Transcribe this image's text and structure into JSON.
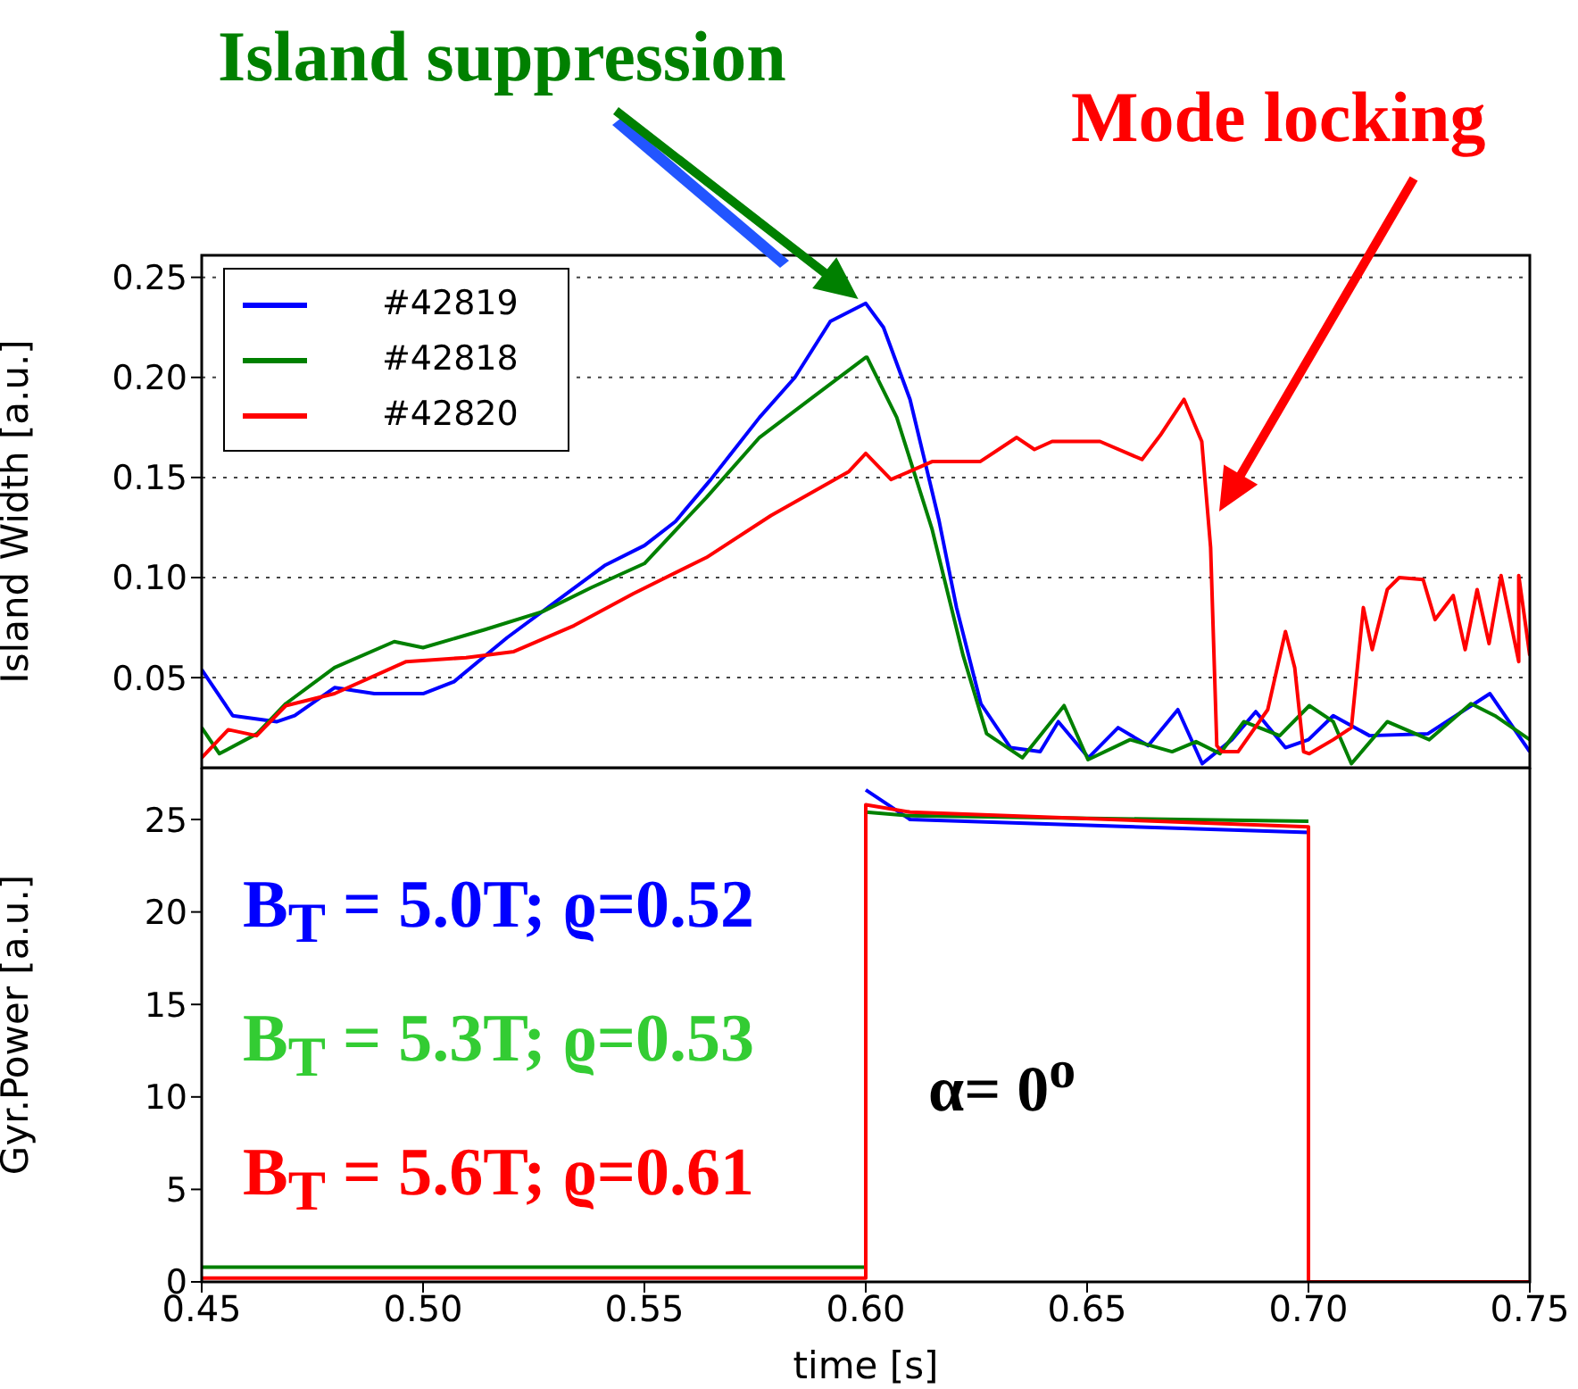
{
  "chart_data": [
    {
      "type": "line",
      "ylabel": "Island Width [a.u.]",
      "xlim": [
        0.45,
        0.75
      ],
      "xticks": [
        0.45,
        0.5,
        0.55,
        0.6,
        0.65,
        0.7,
        0.75
      ],
      "ylim": [
        0.005,
        0.261
      ],
      "yticks": [
        0.05,
        {
          "value": 0.1,
          "label": "0.10"
        },
        0.15,
        {
          "value": 0.2,
          "label": "0.20"
        },
        0.25
      ],
      "grid": true,
      "legend": "top left",
      "tick_labels": "y",
      "annotations": [
        "Island suppression",
        "Mode locking"
      ],
      "series": [
        {
          "name": "#42819",
          "color": "#0000ff",
          "x": [
            0.45,
            0.457,
            0.467,
            0.471,
            0.48,
            0.489,
            0.5,
            0.507,
            0.519,
            0.53,
            0.541,
            0.55,
            0.557,
            0.565,
            0.576,
            0.584,
            0.592,
            0.6,
            0.604,
            0.61,
            0.6165,
            0.6205,
            0.626,
            0.6327,
            0.6394,
            0.6435,
            0.6503,
            0.657,
            0.6638,
            0.6705,
            0.676,
            0.6827,
            0.6881,
            0.6948,
            0.7,
            0.7056,
            0.7138,
            0.727,
            0.741,
            0.75
          ],
          "values": [
            0.054,
            0.031,
            0.028,
            0.031,
            0.045,
            0.042,
            0.042,
            0.048,
            0.07,
            0.088,
            0.106,
            0.116,
            0.128,
            0.149,
            0.18,
            0.2,
            0.228,
            0.237,
            0.225,
            0.189,
            0.129,
            0.085,
            0.037,
            0.015,
            0.013,
            0.028,
            0.01,
            0.025,
            0.016,
            0.034,
            0.007,
            0.019,
            0.033,
            0.015,
            0.019,
            0.031,
            0.021,
            0.022,
            0.042,
            0.013
          ]
        },
        {
          "name": "#42818",
          "color": "#008000",
          "x": [
            0.45,
            0.454,
            0.4625,
            0.469,
            0.48,
            0.4935,
            0.5,
            0.514,
            0.527,
            0.538,
            0.55,
            0.564,
            0.576,
            0.588,
            0.6,
            0.6003,
            0.607,
            0.615,
            0.622,
            0.6273,
            0.6354,
            0.6448,
            0.6502,
            0.6597,
            0.6692,
            0.6746,
            0.68,
            0.6854,
            0.6935,
            0.7002,
            0.7056,
            0.7097,
            0.7178,
            0.7273,
            0.7367,
            0.7421,
            0.75
          ],
          "values": [
            0.025,
            0.012,
            0.022,
            0.037,
            0.055,
            0.068,
            0.065,
            0.074,
            0.083,
            0.095,
            0.107,
            0.14,
            0.17,
            0.19,
            0.21,
            0.21,
            0.18,
            0.124,
            0.061,
            0.022,
            0.01,
            0.036,
            0.009,
            0.019,
            0.013,
            0.018,
            0.012,
            0.028,
            0.021,
            0.036,
            0.028,
            0.007,
            0.028,
            0.019,
            0.037,
            0.031,
            0.019
          ]
        },
        {
          "name": "#42820",
          "color": "#ff0000",
          "x": [
            0.45,
            0.456,
            0.4624,
            0.469,
            0.48,
            0.4962,
            0.5097,
            0.5205,
            0.5341,
            0.5475,
            0.564,
            0.5786,
            0.5962,
            0.6,
            0.6057,
            0.6151,
            0.6259,
            0.6341,
            0.6381,
            0.6421,
            0.6529,
            0.6624,
            0.6665,
            0.6719,
            0.6759,
            0.6779,
            0.6793,
            0.6804,
            0.6841,
            0.6908,
            0.6948,
            0.6969,
            0.6989,
            0.7002,
            0.7056,
            0.7097,
            0.7124,
            0.7144,
            0.7178,
            0.7205,
            0.7259,
            0.7286,
            0.7327,
            0.7354,
            0.7381,
            0.7408,
            0.7435,
            0.7475,
            0.7475,
            0.75
          ],
          "values": [
            0.01,
            0.024,
            0.021,
            0.036,
            0.042,
            0.058,
            0.06,
            0.063,
            0.076,
            0.092,
            0.11,
            0.131,
            0.153,
            0.162,
            0.149,
            0.158,
            0.158,
            0.17,
            0.164,
            0.168,
            0.168,
            0.159,
            0.171,
            0.189,
            0.168,
            0.115,
            0.016,
            0.013,
            0.013,
            0.034,
            0.073,
            0.055,
            0.013,
            0.012,
            0.019,
            0.025,
            0.085,
            0.064,
            0.094,
            0.1,
            0.099,
            0.079,
            0.091,
            0.064,
            0.094,
            0.067,
            0.101,
            0.058,
            0.101,
            0.061
          ]
        }
      ]
    },
    {
      "type": "line",
      "xlabel": "time [s]",
      "ylabel": "Gyr.Power [a.u.]",
      "xlim": [
        0.45,
        0.75
      ],
      "xticks": [
        0.45,
        {
          "value": 0.5,
          "label": "0.50"
        },
        0.55,
        {
          "value": 0.6,
          "label": "0.60"
        },
        0.65,
        {
          "value": 0.7,
          "label": "0.70"
        },
        0.75
      ],
      "ylim": [
        0,
        27.8
      ],
      "yticks": [
        0,
        5,
        10,
        15,
        20,
        25
      ],
      "annotations": [
        "B$_{T}$ = 5.0T; ϱ=0.52",
        "B$_{T}$ = 5.3T; ϱ=0.53",
        "B$_{T}$ = 5.6T; ϱ=0.61",
        "α= 0$^{o}$"
      ],
      "series": [
        {
          "color": "#0000ff",
          "x": [
            0.6,
            0.61,
            0.7
          ],
          "values": [
            26.6,
            25.0,
            24.3
          ]
        },
        {
          "color": "#008000",
          "x": [
            0.45,
            0.6,
            0.6,
            0.61,
            0.7
          ],
          "values": [
            0.8,
            0.8,
            25.4,
            25.2,
            24.9
          ]
        },
        {
          "color": "#ff0000",
          "x": [
            0.45,
            0.6,
            0.6,
            0.61,
            0.7,
            0.7,
            0.75
          ],
          "values": [
            0.2,
            0.2,
            25.8,
            25.4,
            24.6,
            0,
            0
          ]
        }
      ]
    }
  ]
}
